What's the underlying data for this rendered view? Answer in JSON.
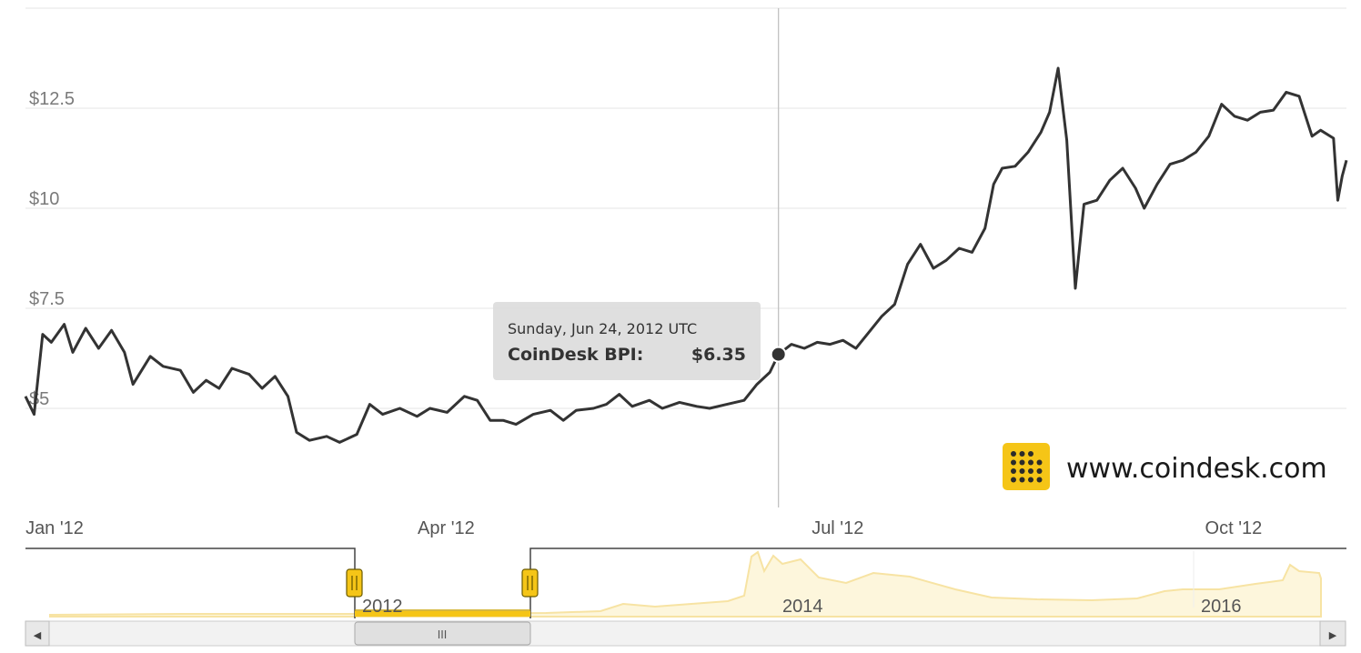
{
  "chart_data": {
    "type": "line",
    "y_axis": {
      "ticks": [
        {
          "value": 5,
          "label": "$5"
        },
        {
          "value": 7.5,
          "label": "$7.5"
        },
        {
          "value": 10,
          "label": "$10"
        },
        {
          "value": 12.5,
          "label": "$12.5"
        }
      ],
      "ylim": [
        2.5,
        15
      ]
    },
    "x_axis": {
      "start": "2012-01-01",
      "end": "2012-11-03",
      "ticks": [
        {
          "date": "2012-01-01",
          "label": "Jan '12"
        },
        {
          "date": "2012-04-01",
          "label": "Apr '12"
        },
        {
          "date": "2012-07-01",
          "label": "Jul '12"
        },
        {
          "date": "2012-10-01",
          "label": "Oct '12"
        }
      ]
    },
    "grid": "horizontal",
    "series": [
      {
        "color": "#333333",
        "points": [
          [
            "2012-01-01",
            5.3
          ],
          [
            "2012-01-03",
            4.85
          ],
          [
            "2012-01-05",
            6.85
          ],
          [
            "2012-01-07",
            6.65
          ],
          [
            "2012-01-10",
            7.1
          ],
          [
            "2012-01-12",
            6.4
          ],
          [
            "2012-01-15",
            7.0
          ],
          [
            "2012-01-18",
            6.5
          ],
          [
            "2012-01-21",
            6.95
          ],
          [
            "2012-01-24",
            6.4
          ],
          [
            "2012-01-26",
            5.6
          ],
          [
            "2012-01-30",
            6.3
          ],
          [
            "2012-02-02",
            6.05
          ],
          [
            "2012-02-06",
            5.95
          ],
          [
            "2012-02-09",
            5.4
          ],
          [
            "2012-02-12",
            5.7
          ],
          [
            "2012-02-15",
            5.5
          ],
          [
            "2012-02-18",
            6.0
          ],
          [
            "2012-02-22",
            5.85
          ],
          [
            "2012-02-25",
            5.5
          ],
          [
            "2012-02-28",
            5.8
          ],
          [
            "2012-03-02",
            5.3
          ],
          [
            "2012-03-04",
            4.4
          ],
          [
            "2012-03-07",
            4.2
          ],
          [
            "2012-03-11",
            4.3
          ],
          [
            "2012-03-14",
            4.15
          ],
          [
            "2012-03-18",
            4.35
          ],
          [
            "2012-03-21",
            5.1
          ],
          [
            "2012-03-24",
            4.85
          ],
          [
            "2012-03-28",
            5.0
          ],
          [
            "2012-04-01",
            4.8
          ],
          [
            "2012-04-04",
            5.0
          ],
          [
            "2012-04-08",
            4.9
          ],
          [
            "2012-04-12",
            5.3
          ],
          [
            "2012-04-15",
            5.2
          ],
          [
            "2012-04-18",
            4.7
          ],
          [
            "2012-04-21",
            4.7
          ],
          [
            "2012-04-24",
            4.6
          ],
          [
            "2012-04-28",
            4.85
          ],
          [
            "2012-05-02",
            4.95
          ],
          [
            "2012-05-05",
            4.7
          ],
          [
            "2012-05-08",
            4.95
          ],
          [
            "2012-05-12",
            5.0
          ],
          [
            "2012-05-15",
            5.1
          ],
          [
            "2012-05-18",
            5.35
          ],
          [
            "2012-05-21",
            5.05
          ],
          [
            "2012-05-25",
            5.2
          ],
          [
            "2012-05-28",
            5.0
          ],
          [
            "2012-06-01",
            5.15
          ],
          [
            "2012-06-05",
            5.05
          ],
          [
            "2012-06-08",
            5.0
          ],
          [
            "2012-06-12",
            5.1
          ],
          [
            "2012-06-16",
            5.2
          ],
          [
            "2012-06-19",
            5.6
          ],
          [
            "2012-06-22",
            5.9
          ],
          [
            "2012-06-24",
            6.35
          ],
          [
            "2012-06-27",
            6.6
          ],
          [
            "2012-06-30",
            6.5
          ],
          [
            "2012-07-03",
            6.65
          ],
          [
            "2012-07-06",
            6.6
          ],
          [
            "2012-07-09",
            6.7
          ],
          [
            "2012-07-12",
            6.5
          ],
          [
            "2012-07-15",
            6.9
          ],
          [
            "2012-07-18",
            7.3
          ],
          [
            "2012-07-21",
            7.6
          ],
          [
            "2012-07-24",
            8.6
          ],
          [
            "2012-07-27",
            9.1
          ],
          [
            "2012-07-30",
            8.5
          ],
          [
            "2012-08-02",
            8.7
          ],
          [
            "2012-08-05",
            9.0
          ],
          [
            "2012-08-08",
            8.9
          ],
          [
            "2012-08-11",
            9.5
          ],
          [
            "2012-08-13",
            10.6
          ],
          [
            "2012-08-15",
            11.0
          ],
          [
            "2012-08-18",
            11.05
          ],
          [
            "2012-08-21",
            11.4
          ],
          [
            "2012-08-24",
            11.9
          ],
          [
            "2012-08-26",
            12.4
          ],
          [
            "2012-08-28",
            13.5
          ],
          [
            "2012-08-30",
            11.7
          ],
          [
            "2012-09-01",
            8.0
          ],
          [
            "2012-09-03",
            10.1
          ],
          [
            "2012-09-06",
            10.2
          ],
          [
            "2012-09-09",
            10.7
          ],
          [
            "2012-09-12",
            11.0
          ],
          [
            "2012-09-15",
            10.5
          ],
          [
            "2012-09-17",
            10.0
          ],
          [
            "2012-09-20",
            10.6
          ],
          [
            "2012-09-23",
            11.1
          ],
          [
            "2012-09-26",
            11.2
          ],
          [
            "2012-09-29",
            11.4
          ],
          [
            "2012-10-02",
            11.8
          ],
          [
            "2012-10-05",
            12.6
          ],
          [
            "2012-10-08",
            12.3
          ],
          [
            "2012-10-11",
            12.2
          ],
          [
            "2012-10-14",
            12.4
          ],
          [
            "2012-10-17",
            12.45
          ],
          [
            "2012-10-20",
            12.9
          ],
          [
            "2012-10-23",
            12.8
          ],
          [
            "2012-10-26",
            11.8
          ],
          [
            "2012-10-28",
            11.95
          ],
          [
            "2012-10-31",
            11.75
          ],
          [
            "2012-11-01",
            10.2
          ],
          [
            "2012-11-02",
            10.8
          ],
          [
            "2012-11-03",
            11.2
          ]
        ]
      }
    ],
    "tooltip": {
      "date_text": "Sunday, Jun 24, 2012 UTC",
      "label": "CoinDesk BPI:",
      "value_text": "$6.35",
      "date": "2012-06-24",
      "value": 6.35
    }
  },
  "navigator": {
    "year_labels": [
      {
        "year": "2012"
      },
      {
        "year": "2014"
      },
      {
        "year": "2016"
      }
    ],
    "scrollbar": {
      "left_arrow": "◀",
      "right_arrow": "▶",
      "grip": "III"
    }
  },
  "branding": {
    "website": "www.coindesk.com",
    "accent_color": "#f5c517",
    "logo_icon": "coindesk-dot-grid-logo"
  }
}
